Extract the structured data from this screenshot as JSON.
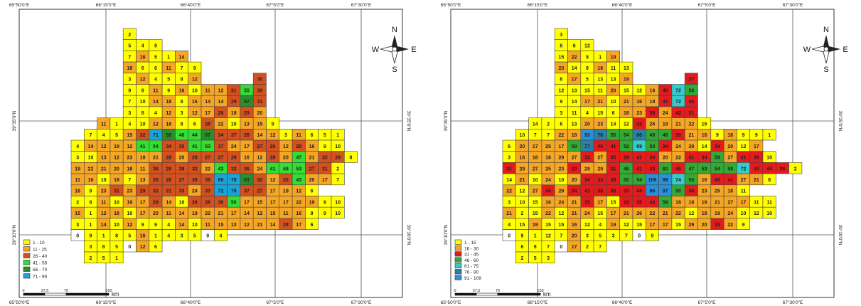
{
  "maps": [
    {
      "id": "left",
      "axis": {
        "top": [
          "65°50'0\"E",
          "66°15'0\"E",
          "66°40'0\"E",
          "67°5'0\"E",
          "67°30'0\"E"
        ],
        "bottom": [
          "65°50'0\"E",
          "66°15'0\"E",
          "66°40'0\"E",
          "67°5'0\"E",
          "67°30'0\"E"
        ],
        "left": [
          "39°35'0\"N",
          "39°10'0\"N"
        ],
        "right": [
          "39°35'0\"N",
          "39°10'0\"N"
        ]
      },
      "north_arrow": {
        "n": "N",
        "s": "S",
        "e": "E",
        "w": "W"
      },
      "scale_bar": {
        "ticks": [
          "0",
          "37,5",
          "75",
          "150"
        ],
        "unit": "km"
      },
      "legend": [
        {
          "label": "1 - 10",
          "color": "#ffff00"
        },
        {
          "label": "11 - 25",
          "color": "#f5a623"
        },
        {
          "label": "26 - 40",
          "color": "#d4501e"
        },
        {
          "label": "41 - 55",
          "color": "#33dd33"
        },
        {
          "label": "56 - 70",
          "color": "#2a8f2a"
        },
        {
          "label": "71 - 86",
          "color": "#1aa3d9"
        }
      ],
      "rows": [
        {
          "c": 9,
          "v": [
            "2"
          ]
        },
        {
          "c": 9,
          "v": [
            "5",
            "4",
            "9"
          ]
        },
        {
          "c": 9,
          "v": [
            "7",
            "16",
            "5",
            "1",
            "14"
          ]
        },
        {
          "c": 9,
          "v": [
            "18",
            "6",
            "6",
            "11",
            "7",
            "9"
          ]
        },
        {
          "c": 9,
          "v": [
            "3",
            "12",
            "4",
            "5",
            "8",
            "12",
            null,
            null,
            null,
            null,
            "30"
          ]
        },
        {
          "c": 9,
          "v": [
            "9",
            "8",
            "11",
            "9",
            "16",
            "10",
            "11",
            "12",
            "31",
            "55",
            "39"
          ]
        },
        {
          "c": 9,
          "v": [
            "7",
            "10",
            "14",
            "18",
            "8",
            "16",
            "14",
            "14",
            "29",
            "57",
            "31"
          ]
        },
        {
          "c": 9,
          "v": [
            "3",
            "8",
            "4",
            "12",
            "3",
            "12",
            "17",
            "28",
            "18",
            "29",
            "20"
          ]
        },
        {
          "c": 7,
          "v": [
            "11",
            "1",
            "4",
            "10",
            "12",
            "18",
            "8",
            "6",
            "28",
            "22",
            "10",
            "13",
            "15",
            "9"
          ]
        },
        {
          "c": 6,
          "v": [
            "7",
            "4",
            "5",
            "15",
            "32",
            "71",
            "59",
            "46",
            "44",
            "67",
            "34",
            "37",
            "26",
            "14",
            "12",
            "3",
            "11",
            "6",
            "5",
            "1"
          ]
        },
        {
          "c": 5,
          "v": [
            "4",
            "14",
            "12",
            "19",
            "12",
            "41",
            "54",
            "34",
            "30",
            "41",
            "53",
            "37",
            "24",
            "17",
            "27",
            "26",
            "12",
            "28",
            "16",
            "9",
            "10"
          ]
        },
        {
          "c": 5,
          "v": [
            "3",
            "10",
            "13",
            "12",
            "23",
            "18",
            "21",
            "28",
            "20",
            "28",
            "27",
            "27",
            "28",
            "16",
            "12",
            "28",
            "20",
            "47",
            "21",
            "32",
            "29",
            "8"
          ]
        },
        {
          "c": 5,
          "v": [
            "19",
            "22",
            "21",
            "20",
            "18",
            "11",
            "36",
            "29",
            "38",
            "32",
            "22",
            "43",
            "32",
            "36",
            "24",
            "41",
            "46",
            "53",
            "27",
            "31",
            "2"
          ]
        },
        {
          "c": 5,
          "v": [
            "11",
            "16",
            "10",
            "18",
            "7",
            "13",
            "28",
            "28",
            "27",
            "38",
            "39",
            "86",
            "78",
            "63",
            "32",
            "12",
            "32",
            "43",
            "20",
            "17",
            "7"
          ]
        },
        {
          "c": 5,
          "v": [
            "18",
            "9",
            "23",
            "31",
            "23",
            "29",
            "32",
            "31",
            "33",
            "24",
            "33",
            "72",
            "79",
            "37",
            "27",
            "17",
            "19",
            "12",
            "6"
          ]
        },
        {
          "c": 5,
          "v": [
            "2",
            "8",
            "11",
            "10",
            "19",
            "17",
            "29",
            "14",
            "10",
            "28",
            "28",
            "30",
            "50",
            "17",
            "15",
            "17",
            "17",
            "22",
            "19",
            "9",
            "10"
          ]
        },
        {
          "c": 5,
          "v": [
            "15",
            "1",
            "12",
            "18",
            "10",
            "17",
            "20",
            "11",
            "14",
            "19",
            "22",
            "21",
            "17",
            "14",
            "12",
            "15",
            "11",
            "16",
            "8",
            "9",
            "10"
          ]
        },
        {
          "c": 5,
          "v": [
            "3",
            "1",
            "14",
            "10",
            "12",
            "9",
            "9",
            "4",
            "14",
            "10",
            "11",
            "15",
            "13",
            "12",
            "21",
            "14",
            "28",
            "17",
            "6"
          ]
        },
        {
          "c": 5,
          "v": [
            "0",
            "9",
            "1",
            "8",
            "5",
            "16",
            "1",
            "4",
            "3",
            "5",
            "0",
            "4"
          ]
        },
        {
          "c": 6,
          "v": [
            "3",
            "8",
            "5",
            "0",
            "12",
            "6"
          ]
        },
        {
          "c": 6,
          "v": [
            "2",
            "5",
            "1"
          ]
        }
      ]
    },
    {
      "id": "right",
      "axis": {
        "top": [
          "65°50'0\"E",
          "66°15'0\"E",
          "66°40'0\"E",
          "67°5'0\"E",
          "67°30'0\"E"
        ],
        "bottom": [
          "65°50'0\"E",
          "66°15'0\"E",
          "66°40'0\"E",
          "67°5'0\"E",
          "67°30'0\"E"
        ],
        "left": [
          "39°35'0\"N",
          "39°10'0\"N"
        ],
        "right": [
          "39°35'0\"N",
          "39°10'0\"N"
        ]
      },
      "north_arrow": {
        "n": "N",
        "s": "S",
        "e": "E",
        "w": "W"
      },
      "scale_bar": {
        "ticks": [
          "0",
          "37,5",
          "75",
          "150"
        ],
        "unit": "km"
      },
      "legend": [
        {
          "label": "1 - 15",
          "color": "#ffff00"
        },
        {
          "label": "16 - 30",
          "color": "#f5a623"
        },
        {
          "label": "31 - 45",
          "color": "#e41a1c"
        },
        {
          "label": "46 - 60",
          "color": "#33aa33"
        },
        {
          "label": "61 - 75",
          "color": "#33cccc"
        },
        {
          "label": "76 - 90",
          "color": "#2a7fa6"
        },
        {
          "label": "91 - 109",
          "color": "#2b8fd9"
        }
      ],
      "rows": [
        {
          "c": 9,
          "v": [
            "3"
          ]
        },
        {
          "c": 9,
          "v": [
            "8",
            "6",
            "12"
          ]
        },
        {
          "c": 9,
          "v": [
            "15",
            "22",
            "9",
            "1",
            "19"
          ]
        },
        {
          "c": 9,
          "v": [
            "23",
            "14",
            "9",
            "16",
            "11",
            "13"
          ]
        },
        {
          "c": 9,
          "v": [
            "6",
            "17",
            "5",
            "13",
            "13",
            "19",
            null,
            null,
            null,
            null,
            "37"
          ]
        },
        {
          "c": 9,
          "v": [
            "12",
            "13",
            "15",
            "11",
            "20",
            "15",
            "12",
            "16",
            "40",
            "72",
            "50"
          ]
        },
        {
          "c": 9,
          "v": [
            "9",
            "14",
            "17",
            "21",
            "10",
            "21",
            "16",
            "18",
            "41",
            "72",
            "45"
          ]
        },
        {
          "c": 9,
          "v": [
            "3",
            "11",
            "4",
            "15",
            "6",
            "18",
            "23",
            "36",
            "24",
            "42",
            "31"
          ]
        },
        {
          "c": 7,
          "v": [
            "14",
            "2",
            "6",
            "13",
            "20",
            "23",
            "14",
            "12",
            "33",
            "26",
            "19",
            "21",
            "22",
            "15"
          ]
        },
        {
          "c": 6,
          "v": [
            "10",
            "7",
            "7",
            "22",
            "18",
            "93",
            "76",
            "55",
            "54",
            "86",
            "49",
            "48",
            "35",
            "21",
            "16",
            "9",
            "18",
            "9",
            "9",
            "1"
          ]
        },
        {
          "c": 5,
          "v": [
            "6",
            "20",
            "17",
            "25",
            "17",
            "59",
            "77",
            "45",
            "41",
            "52",
            "69",
            "50",
            "34",
            "24",
            "29",
            "14",
            "34",
            "20",
            "12",
            "17"
          ]
        },
        {
          "c": 5,
          "v": [
            "3",
            "16",
            "18",
            "18",
            "29",
            "27",
            "33",
            "27",
            "35",
            "39",
            "41",
            "34",
            "20",
            "22",
            "41",
            "34",
            "59",
            "27",
            "41",
            "36",
            "10"
          ]
        },
        {
          "c": 5,
          "v": [
            "31",
            "29",
            "27",
            "25",
            "23",
            "33",
            "29",
            "29",
            "31",
            "46",
            "41",
            "33",
            "60",
            "45",
            "47",
            "53",
            "54",
            "58",
            "72",
            "44",
            "44",
            "36",
            "2"
          ]
        },
        {
          "c": 5,
          "v": [
            "14",
            "21",
            "10",
            "24",
            "10",
            "20",
            "34",
            "33",
            "38",
            "50",
            "54",
            "109",
            "99",
            "74",
            "50",
            "16",
            "40",
            "41",
            "27",
            "21",
            "8"
          ]
        },
        {
          "c": 5,
          "v": [
            "22",
            "12",
            "27",
            "40",
            "29",
            "34",
            "41",
            "38",
            "38",
            "33",
            "44",
            "96",
            "97",
            "50",
            "36",
            "23",
            "25",
            "18",
            "11"
          ]
        },
        {
          "c": 5,
          "v": [
            "3",
            "10",
            "15",
            "16",
            "24",
            "21",
            "35",
            "17",
            "15",
            "32",
            "35",
            "44",
            "59",
            "18",
            "18",
            "19",
            "21",
            "27",
            "17",
            "11",
            "11"
          ]
        },
        {
          "c": 5,
          "v": [
            "21",
            "2",
            "15",
            "22",
            "12",
            "21",
            "24",
            "15",
            "17",
            "21",
            "26",
            "22",
            "21",
            "22",
            "12",
            "18",
            "19",
            "24",
            "10",
            "12",
            "10"
          ]
        },
        {
          "c": 5,
          "v": [
            "4",
            "15",
            "19",
            "15",
            "15",
            "16",
            "12",
            "4",
            "19",
            "12",
            "15",
            "17",
            "17",
            "15",
            "29",
            "20",
            "33",
            "22",
            "9"
          ]
        },
        {
          "c": 5,
          "v": [
            "0",
            "9",
            "1",
            "12",
            "7",
            "20",
            "3",
            "5",
            "3",
            "7",
            "0",
            "9"
          ]
        },
        {
          "c": 6,
          "v": [
            "6",
            "9",
            "7",
            "0",
            "17",
            "2",
            "7"
          ]
        },
        {
          "c": 6,
          "v": [
            "2",
            "5",
            "3"
          ]
        }
      ]
    }
  ]
}
